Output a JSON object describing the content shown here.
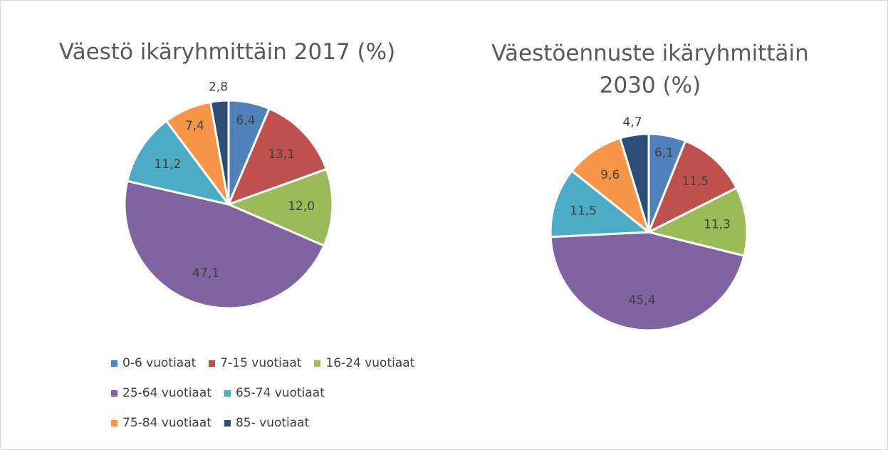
{
  "chart_data": [
    {
      "type": "pie",
      "title": "Väestö ikäryhmittäin 2017 (%)",
      "categories": [
        "0-6 vuotiaat",
        "7-15 vuotiaat",
        "16-24 vuotiaat",
        "25-64 vuotiaat",
        "65-74 vuotiaat",
        "75-84 vuotiaat",
        "85- vuotiaat"
      ],
      "values": [
        6.4,
        13.1,
        12.0,
        47.1,
        11.2,
        7.4,
        2.8
      ],
      "value_labels": [
        "6,4",
        "13,1",
        "12,0",
        "47,1",
        "11,2",
        "7,4",
        "2,8"
      ],
      "colors": [
        "#4f81bd",
        "#c0504d",
        "#9bbb59",
        "#8064a2",
        "#4bacc6",
        "#f79646",
        "#2c4d75"
      ],
      "legend": "bottom"
    },
    {
      "type": "pie",
      "title": "Väestöennuste ikäryhmittäin 2030 (%)",
      "categories": [
        "0-6 vuotiaat",
        "7-15 vuotiaat",
        "16-24 vuotiaat",
        "25-64 vuotiaat",
        "65-74 vuotiaat",
        "75-84 vuotiaat",
        "85- vuotiaat"
      ],
      "values": [
        6.1,
        11.5,
        11.3,
        45.4,
        11.5,
        9.6,
        4.7
      ],
      "value_labels": [
        "6,1",
        "11,5",
        "11,3",
        "45,4",
        "11,5",
        "9,6",
        "4,7"
      ],
      "colors": [
        "#4f81bd",
        "#c0504d",
        "#9bbb59",
        "#8064a2",
        "#4bacc6",
        "#f79646",
        "#2c4d75"
      ]
    }
  ]
}
